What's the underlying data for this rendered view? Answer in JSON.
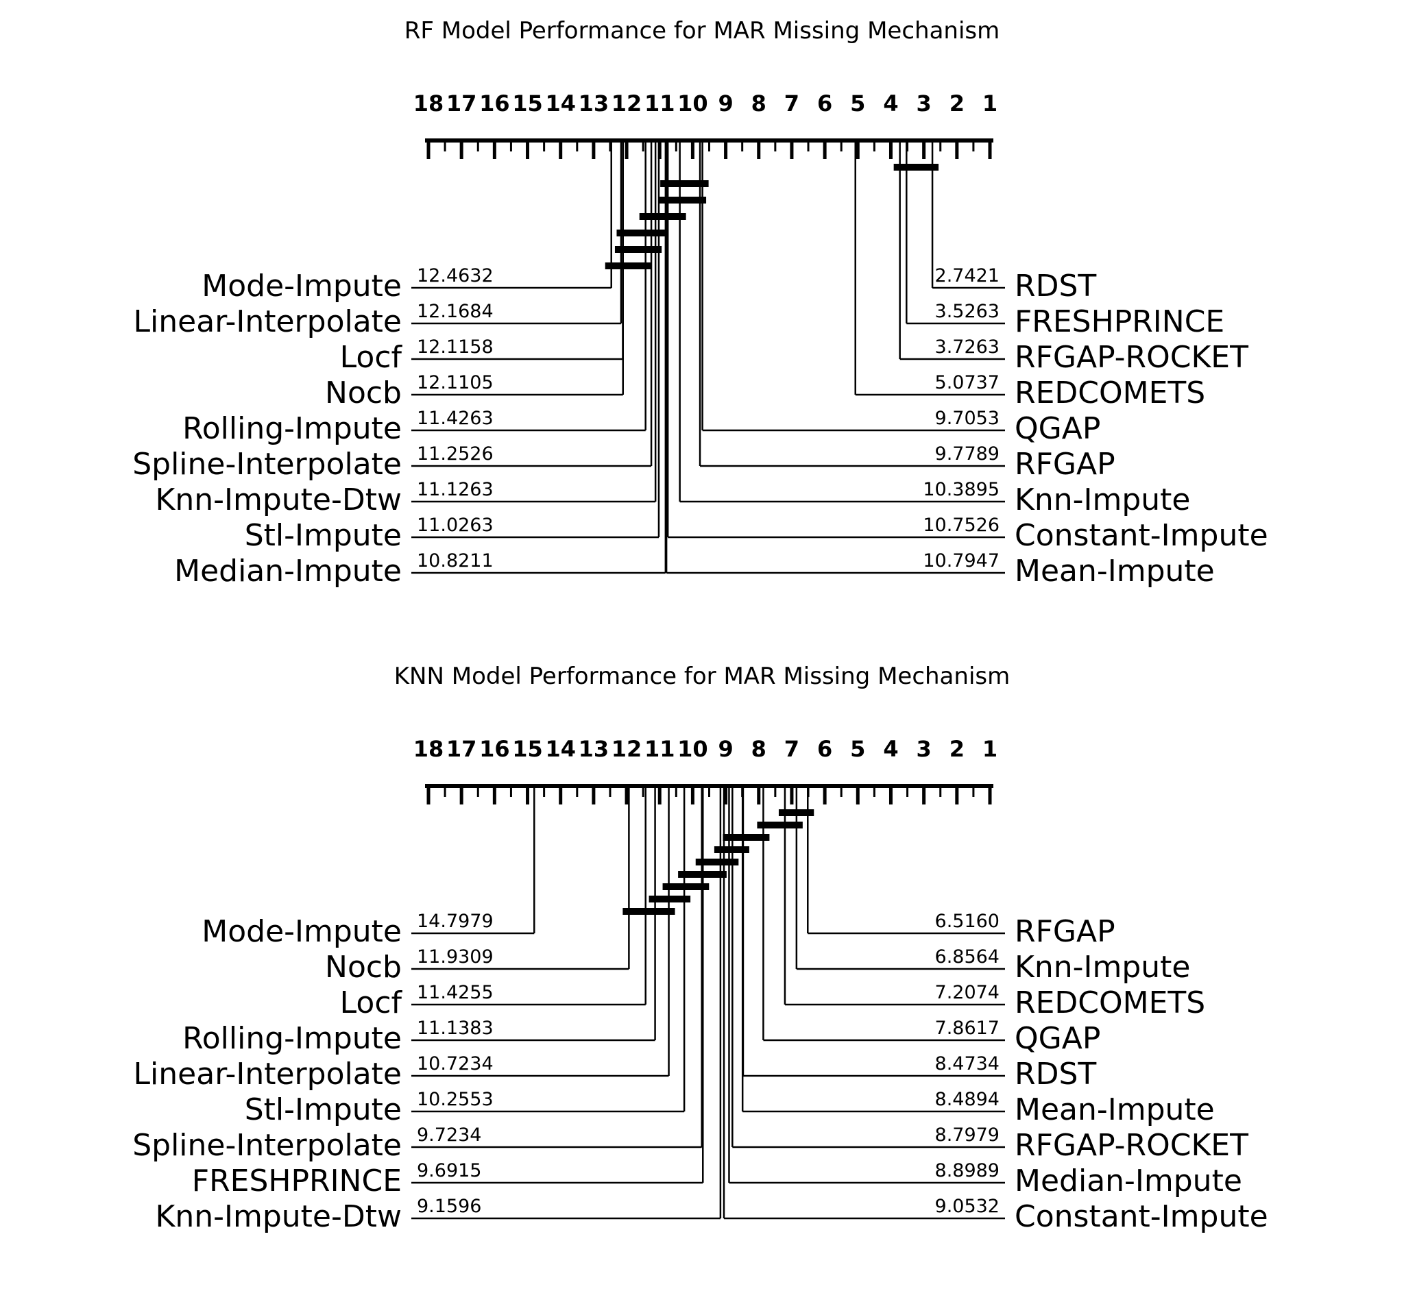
{
  "page": {
    "background": "#ffffff",
    "ink": "#000000"
  },
  "chart_data": [
    {
      "type": "cd-diagram",
      "title": "RF Model Performance for MAR Missing Mechanism",
      "axis": {
        "min": 1,
        "max": 18,
        "direction": "rank 1 on right, rank 18 on left",
        "ticks": [
          18,
          17,
          16,
          15,
          14,
          13,
          12,
          11,
          10,
          9,
          8,
          7,
          6,
          5,
          4,
          3,
          2,
          1
        ],
        "minor_tick_step": 0.5
      },
      "left_methods": [
        {
          "label": "Mode-Impute",
          "rank": "12.4632"
        },
        {
          "label": "Linear-Interpolate",
          "rank": "12.1684"
        },
        {
          "label": "Locf",
          "rank": "12.1158"
        },
        {
          "label": "Nocb",
          "rank": "12.1105"
        },
        {
          "label": "Rolling-Impute",
          "rank": "11.4263"
        },
        {
          "label": "Spline-Interpolate",
          "rank": "11.2526"
        },
        {
          "label": "Knn-Impute-Dtw",
          "rank": "11.1263"
        },
        {
          "label": "Stl-Impute",
          "rank": "11.0263"
        },
        {
          "label": "Median-Impute",
          "rank": "10.8211"
        }
      ],
      "right_methods": [
        {
          "label": "RDST",
          "rank": "2.7421"
        },
        {
          "label": "FRESHPRINCE",
          "rank": "3.5263"
        },
        {
          "label": "RFGAP-ROCKET",
          "rank": "3.7263"
        },
        {
          "label": "REDCOMETS",
          "rank": "5.0737"
        },
        {
          "label": "QGAP",
          "rank": "9.7053"
        },
        {
          "label": "RFGAP",
          "rank": "9.7789"
        },
        {
          "label": "Knn-Impute",
          "rank": "10.3895"
        },
        {
          "label": "Constant-Impute",
          "rank": "10.7526"
        },
        {
          "label": "Mean-Impute",
          "rank": "10.7947"
        }
      ],
      "cliques": [
        [
          2.7421,
          3.7263
        ],
        [
          9.7053,
          10.7947
        ],
        [
          9.7789,
          10.8211
        ],
        [
          10.3895,
          11.4263
        ],
        [
          11.0263,
          12.1158
        ],
        [
          11.1263,
          12.1684
        ],
        [
          11.4263,
          12.4632
        ]
      ]
    },
    {
      "type": "cd-diagram",
      "title": "KNN Model Performance for MAR Missing Mechanism",
      "axis": {
        "min": 1,
        "max": 18,
        "direction": "rank 1 on right, rank 18 on left",
        "ticks": [
          18,
          17,
          16,
          15,
          14,
          13,
          12,
          11,
          10,
          9,
          8,
          7,
          6,
          5,
          4,
          3,
          2,
          1
        ],
        "minor_tick_step": 0.5
      },
      "left_methods": [
        {
          "label": "Mode-Impute",
          "rank": "14.7979"
        },
        {
          "label": "Nocb",
          "rank": "11.9309"
        },
        {
          "label": "Locf",
          "rank": "11.4255"
        },
        {
          "label": "Rolling-Impute",
          "rank": "11.1383"
        },
        {
          "label": "Linear-Interpolate",
          "rank": "10.7234"
        },
        {
          "label": "Stl-Impute",
          "rank": "10.2553"
        },
        {
          "label": "Spline-Interpolate",
          "rank": "9.7234"
        },
        {
          "label": "FRESHPRINCE",
          "rank": "9.6915"
        },
        {
          "label": "Knn-Impute-Dtw",
          "rank": "9.1596"
        }
      ],
      "right_methods": [
        {
          "label": "RFGAP",
          "rank": "6.5160"
        },
        {
          "label": "Knn-Impute",
          "rank": "6.8564"
        },
        {
          "label": "REDCOMETS",
          "rank": "7.2074"
        },
        {
          "label": "QGAP",
          "rank": "7.8617"
        },
        {
          "label": "RDST",
          "rank": "8.4734"
        },
        {
          "label": "Mean-Impute",
          "rank": "8.4894"
        },
        {
          "label": "RFGAP-ROCKET",
          "rank": "8.7979"
        },
        {
          "label": "Median-Impute",
          "rank": "8.8989"
        },
        {
          "label": "Constant-Impute",
          "rank": "9.0532"
        }
      ],
      "cliques": [
        [
          6.516,
          7.2074
        ],
        [
          6.8564,
          7.8617
        ],
        [
          7.8617,
          8.8989
        ],
        [
          8.4734,
          9.1596
        ],
        [
          8.7979,
          9.7234
        ],
        [
          9.1596,
          10.2553
        ],
        [
          9.6915,
          10.7234
        ],
        [
          10.2553,
          11.1383
        ],
        [
          10.7234,
          11.9309
        ]
      ]
    }
  ]
}
